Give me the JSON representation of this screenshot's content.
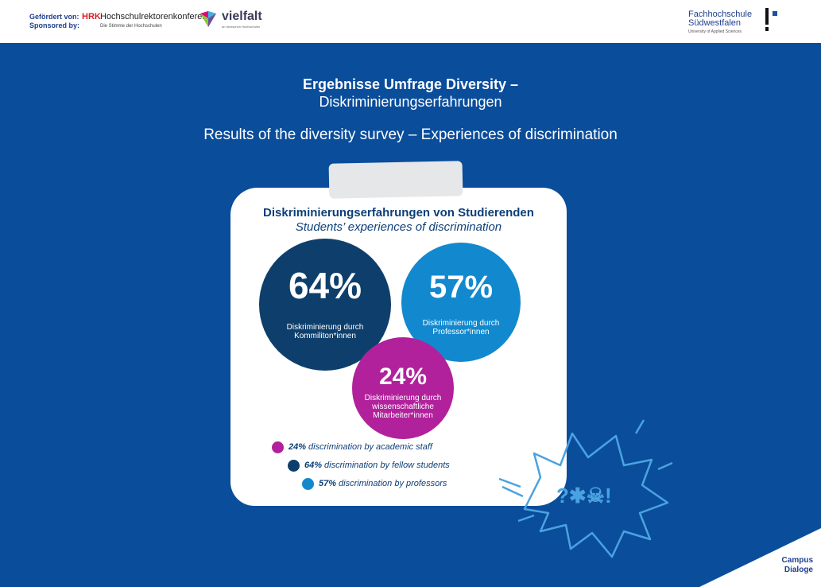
{
  "header": {
    "sponsor_label_de": "Gefördert von:",
    "sponsor_label_en": "Sponsored by:",
    "hrk_mark": "HRK",
    "hrk_name": "Hochschulrektorenkonferenz",
    "hrk_subline": "Die Stimme der Hochschulen",
    "vielfalt_name": "vielfalt",
    "vielfalt_subline": "an deutschen Hochschulen",
    "fh_line1": "Fachhochschule",
    "fh_line2": "Südwestfalen",
    "fh_line3": "University of Applied Sciences"
  },
  "title": {
    "line1": "Ergebnisse Umfrage Diversity –",
    "line2": "Diskriminierungserfahrungen",
    "line3": "Results of the diversity survey – Experiences of discrimination"
  },
  "card": {
    "title": "Diskriminierungserfahrungen von Studierenden",
    "subtitle": "Students’ experiences of discrimination"
  },
  "chart_data": {
    "type": "bubble",
    "title": "Diskriminierungserfahrungen von Studierenden",
    "subtitle": "Students’ experiences of discrimination",
    "unit": "%",
    "series": [
      {
        "value": 64,
        "value_label": "64%",
        "label_de": "Diskriminierung durch Kommiliton*innen",
        "label_lines": [
          "Diskriminierung durch",
          "Kommiliton*innen"
        ],
        "legend_pct": "64%",
        "legend_text": "discrimination by fellow students",
        "color": "#0e3f6c"
      },
      {
        "value": 57,
        "value_label": "57%",
        "label_de": "Diskriminierung durch Professor*innen",
        "label_lines": [
          "Diskriminierung durch",
          "Professor*innen"
        ],
        "legend_pct": "57%",
        "legend_text": "discrimination by professors",
        "color": "#1289cf"
      },
      {
        "value": 24,
        "value_label": "24%",
        "label_de": "Diskriminierung durch wissenschaftliche Mitarbeiter*innen",
        "label_lines": [
          "Diskriminierung durch",
          "wissenschaftliche",
          "Mitarbeiter*innen"
        ],
        "legend_pct": "24%",
        "legend_text": "discrimination by academic staff",
        "color": "#b1219c"
      }
    ],
    "legend_order": [
      2,
      0,
      1
    ]
  },
  "footer": {
    "campus_line1": "Campus",
    "campus_line2": "Dialoge"
  },
  "decoration": {
    "comic_symbols": "?✱☠!"
  }
}
